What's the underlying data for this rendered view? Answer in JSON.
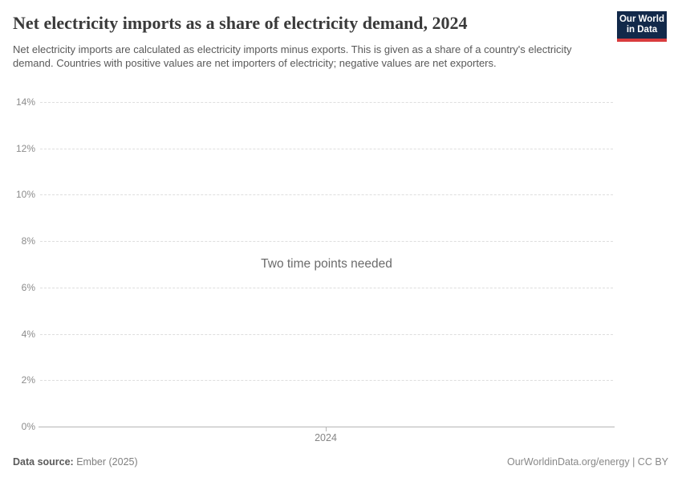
{
  "header": {
    "title": "Net electricity imports as a share of electricity demand, 2024",
    "subtitle": "Net electricity imports are calculated as electricity imports minus exports. This is given as a share of a country's electricity demand. Countries with positive values are net importers of electricity; negative values are net exporters.",
    "logo": {
      "line1": "Our World",
      "line2": "in Data"
    }
  },
  "chart_data": {
    "type": "line",
    "title": "Net electricity imports as a share of electricity demand, 2024",
    "message": "Two time points needed",
    "series": [],
    "x_ticks": [
      "2024"
    ],
    "y_ticks": [
      {
        "value": 0,
        "label": "0%"
      },
      {
        "value": 2,
        "label": "2%"
      },
      {
        "value": 4,
        "label": "4%"
      },
      {
        "value": 6,
        "label": "6%"
      },
      {
        "value": 8,
        "label": "8%"
      },
      {
        "value": 10,
        "label": "10%"
      },
      {
        "value": 12,
        "label": "12%"
      },
      {
        "value": 14,
        "label": "14%"
      }
    ],
    "ylim": [
      0,
      14
    ],
    "xlabel": "",
    "ylabel": "",
    "grid": "horizontal-dashed",
    "legend": "none"
  },
  "footer": {
    "data_source_label": "Data source:",
    "data_source_value": "Ember (2025)",
    "credit": "OurWorldinData.org/energy | CC BY"
  },
  "colors": {
    "background": "#ffffff",
    "title": "#3a3a3a",
    "subtitle": "#595959",
    "grid": "#dedede",
    "axis": "#b6b6b6",
    "tick_label": "#8c8c8c",
    "message": "#6b6b6b",
    "logo_background": "#12294a",
    "logo_accent": "#d93c3e",
    "footer_text": "#808080"
  }
}
